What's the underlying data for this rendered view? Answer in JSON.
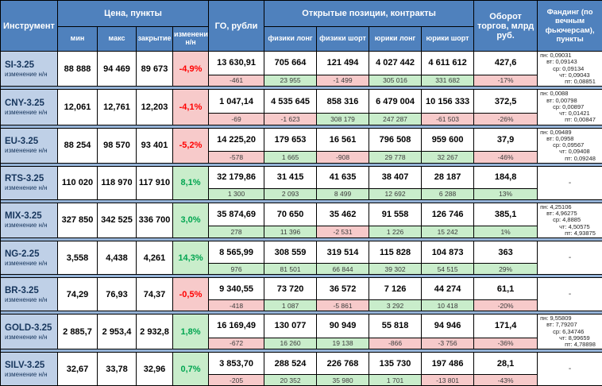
{
  "header": {
    "instrument": "Инструмент",
    "price_group": "Цена, пункты",
    "price_cols": [
      "мин",
      "макс",
      "закрытие",
      "изменение н/н"
    ],
    "go": "ГО, рубли",
    "oi_group": "Открытые позиции, контракты",
    "oi_cols": [
      "физики лонг",
      "физики шорт",
      "юрики лонг",
      "юрики шорт"
    ],
    "turnover": "Оборот торгов, млрд руб.",
    "funding": "Фандинг (по вечным фьючерсам), пункты"
  },
  "change_row_label": "изменение н/н",
  "no_funding_placeholder": "-",
  "colors": {
    "header_blue": "#4F81BD",
    "instrument_bg": "#BFD0E7",
    "dark_blue_text": "#17365D",
    "negative_bg": "#F7CACA",
    "positive_bg": "#C9EDCB",
    "negative_text": "#FF0000",
    "positive_text": "#00A550",
    "separator": "#95B3D7"
  },
  "rows": [
    {
      "name": "SI-3.25",
      "min": "88 888",
      "max": "94 469",
      "close": "89 673",
      "change_pct": "-4,9%",
      "go": "13 630,91",
      "go_chg": "-461",
      "fiz_long": "705 664",
      "fiz_long_chg": "23 955",
      "fiz_short": "121 494",
      "fiz_short_chg": "-1 499",
      "jur_long": "4 027 442",
      "jur_long_chg": "305 016",
      "jur_short": "4 611 612",
      "jur_short_chg": "331 682",
      "turnover": "427,6",
      "turnover_chg": "-17%",
      "funding": [
        "пн: 0,09031",
        "вт: 0,09143",
        "ср: 0,09134",
        "чт: 0,09043",
        "пт: 0,08851"
      ]
    },
    {
      "name": "CNY-3.25",
      "min": "12,061",
      "max": "12,761",
      "close": "12,203",
      "change_pct": "-4,1%",
      "go": "1 047,14",
      "go_chg": "-69",
      "fiz_long": "4 535 645",
      "fiz_long_chg": "-1 623",
      "fiz_short": "858 316",
      "fiz_short_chg": "308 179",
      "jur_long": "6 479 004",
      "jur_long_chg": "247 287",
      "jur_short": "10 156 333",
      "jur_short_chg": "-61 503",
      "turnover": "372,5",
      "turnover_chg": "-26%",
      "funding": [
        "пн: 0,0088",
        "вт: 0,00798",
        "ср: 0,00897",
        "чт: 0,01421",
        "пт: 0,00847"
      ]
    },
    {
      "name": "EU-3.25",
      "min": "88 254",
      "max": "98 570",
      "close": "93 401",
      "change_pct": "-5,2%",
      "go": "14 225,20",
      "go_chg": "-578",
      "fiz_long": "179 653",
      "fiz_long_chg": "1 665",
      "fiz_short": "16 561",
      "fiz_short_chg": "-908",
      "jur_long": "796 508",
      "jur_long_chg": "29 778",
      "jur_short": "959 600",
      "jur_short_chg": "32 267",
      "turnover": "37,9",
      "turnover_chg": "-46%",
      "funding": [
        "пн: 0,09489",
        "вт: 0,0958",
        "ср: 0,09567",
        "чт: 0,09408",
        "пт: 0,09248"
      ]
    },
    {
      "name": "RTS-3.25",
      "min": "110 020",
      "max": "118 970",
      "close": "117 910",
      "change_pct": "8,1%",
      "go": "32 179,86",
      "go_chg": "1 300",
      "fiz_long": "31 415",
      "fiz_long_chg": "2 093",
      "fiz_short": "41 635",
      "fiz_short_chg": "8 499",
      "jur_long": "38 407",
      "jur_long_chg": "12 692",
      "jur_short": "28 187",
      "jur_short_chg": "6 288",
      "turnover": "184,8",
      "turnover_chg": "13%",
      "funding": []
    },
    {
      "name": "MIX-3.25",
      "min": "327 850",
      "max": "342 525",
      "close": "336 700",
      "change_pct": "3,0%",
      "go": "35 874,69",
      "go_chg": "278",
      "fiz_long": "70 650",
      "fiz_long_chg": "11 396",
      "fiz_short": "35 462",
      "fiz_short_chg": "-2 531",
      "jur_long": "91 558",
      "jur_long_chg": "1 226",
      "jur_short": "126 746",
      "jur_short_chg": "15 242",
      "turnover": "385,1",
      "turnover_chg": "1%",
      "funding": [
        "пн: 4,25106",
        "вт: 4,96275",
        "ср: 4,8885",
        "чт: 4,50575",
        "пт: 4,93875"
      ]
    },
    {
      "name": "NG-2.25",
      "min": "3,558",
      "max": "4,438",
      "close": "4,261",
      "change_pct": "14,3%",
      "go": "8 565,99",
      "go_chg": "976",
      "fiz_long": "308 559",
      "fiz_long_chg": "81 501",
      "fiz_short": "319 514",
      "fiz_short_chg": "66 844",
      "jur_long": "115 828",
      "jur_long_chg": "39 302",
      "jur_short": "104 873",
      "jur_short_chg": "54 515",
      "turnover": "363",
      "turnover_chg": "29%",
      "funding": []
    },
    {
      "name": "BR-3.25",
      "min": "74,29",
      "max": "76,93",
      "close": "74,37",
      "change_pct": "-0,5%",
      "go": "9 340,55",
      "go_chg": "-418",
      "fiz_long": "73 720",
      "fiz_long_chg": "1 087",
      "fiz_short": "36 572",
      "fiz_short_chg": "-5 861",
      "jur_long": "7 126",
      "jur_long_chg": "3 292",
      "jur_short": "44 274",
      "jur_short_chg": "10 418",
      "turnover": "61,1",
      "turnover_chg": "-20%",
      "funding": []
    },
    {
      "name": "GOLD-3.25",
      "min": "2 885,7",
      "max": "2 953,4",
      "close": "2 932,8",
      "change_pct": "1,8%",
      "go": "16 169,49",
      "go_chg": "-672",
      "fiz_long": "130 077",
      "fiz_long_chg": "16 260",
      "fiz_short": "90 949",
      "fiz_short_chg": "19 138",
      "jur_long": "55 818",
      "jur_long_chg": "-866",
      "jur_short": "94 946",
      "jur_short_chg": "-3 756",
      "turnover": "171,4",
      "turnover_chg": "-36%",
      "funding": [
        "пн: 9,55809",
        "вт: 7,79207",
        "ср: 6,34746",
        "чт: 8,99659",
        "пт: 4,78898"
      ]
    },
    {
      "name": "SILV-3.25",
      "min": "32,67",
      "max": "33,78",
      "close": "32,96",
      "change_pct": "0,7%",
      "go": "3 853,70",
      "go_chg": "-205",
      "fiz_long": "288 524",
      "fiz_long_chg": "20 352",
      "fiz_short": "226 768",
      "fiz_short_chg": "35 980",
      "jur_long": "135 730",
      "jur_long_chg": "1 701",
      "jur_short": "197 486",
      "jur_short_chg": "-13 801",
      "turnover": "28,1",
      "turnover_chg": "-43%",
      "funding": []
    }
  ]
}
